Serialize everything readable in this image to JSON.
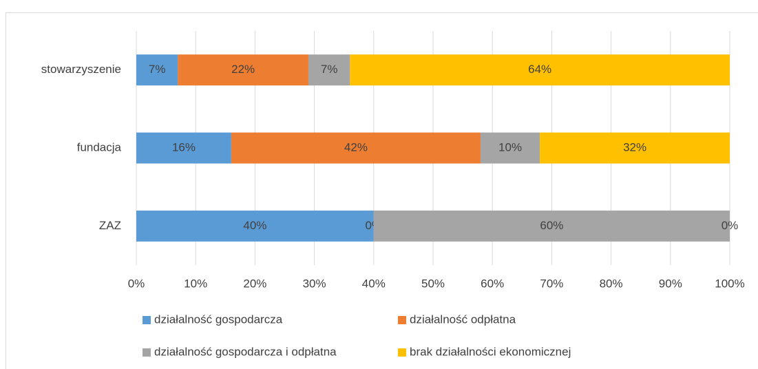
{
  "chart_data": {
    "type": "stacked-barh",
    "categories": [
      "stowarzyszenie",
      "fundacja",
      "ZAZ"
    ],
    "series": [
      {
        "name": "działalność gospodarcza",
        "color": "#5b9bd5",
        "values": [
          7,
          16,
          40
        ],
        "value_labels": [
          "7%",
          "16%",
          "40%"
        ]
      },
      {
        "name": "działalność odpłatna",
        "color": "#ed7d31",
        "values": [
          22,
          42,
          0
        ],
        "value_labels": [
          "22%",
          "42%",
          "0%"
        ]
      },
      {
        "name": "działalność gospodarcza i odpłatna",
        "color": "#a5a5a5",
        "values": [
          7,
          10,
          60
        ],
        "value_labels": [
          "7%",
          "10%",
          "60%"
        ]
      },
      {
        "name": "brak działalności ekonomicznej",
        "color": "#ffc000",
        "values": [
          64,
          32,
          0
        ],
        "value_labels": [
          "64%",
          "32%",
          "0%"
        ]
      }
    ],
    "xlim": [
      0,
      100
    ],
    "xticks": [
      {
        "value": 0,
        "label": "0%"
      },
      {
        "value": 10,
        "label": "10%"
      },
      {
        "value": 20,
        "label": "20%"
      },
      {
        "value": 30,
        "label": "30%"
      },
      {
        "value": 40,
        "label": "40%"
      },
      {
        "value": 50,
        "label": "50%"
      },
      {
        "value": 60,
        "label": "60%"
      },
      {
        "value": 70,
        "label": "70%"
      },
      {
        "value": 80,
        "label": "80%"
      },
      {
        "value": 90,
        "label": "90%"
      },
      {
        "value": 100,
        "label": "100%"
      }
    ],
    "grid": true,
    "legend": "bottom"
  }
}
